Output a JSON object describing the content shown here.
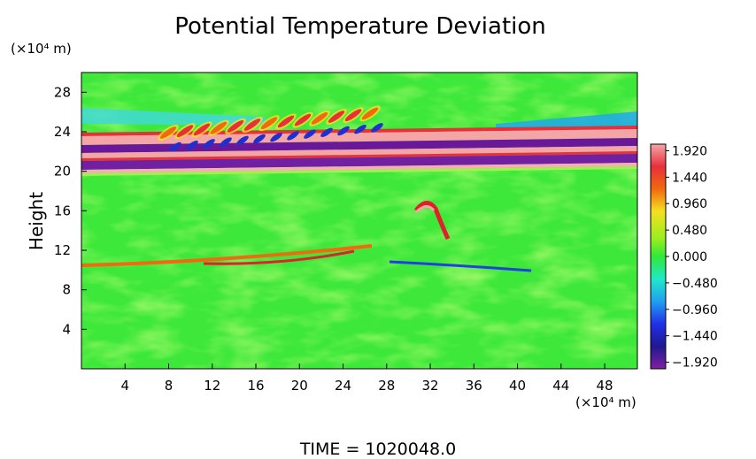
{
  "chart_data": {
    "type": "heatmap",
    "title": "Potential Temperature Deviation",
    "ylabel": "Height",
    "y_unit": "(×10⁴ m)",
    "x_unit": "(×10⁴ m)",
    "footer": "TIME = 1020048.0",
    "xlim": [
      0,
      51
    ],
    "ylim": [
      0,
      30
    ],
    "xticks": [
      4,
      8,
      12,
      16,
      20,
      24,
      28,
      32,
      36,
      40,
      44,
      48
    ],
    "yticks": [
      4,
      8,
      12,
      16,
      20,
      24,
      28
    ],
    "clim": [
      -2.04,
      2.04
    ],
    "colorbar_ticks": [
      {
        "value": 1.92,
        "label": "1.920"
      },
      {
        "value": 1.44,
        "label": "1.440"
      },
      {
        "value": 0.96,
        "label": "0.960"
      },
      {
        "value": 0.48,
        "label": "0.480"
      },
      {
        "value": 0,
        "label": "0.000"
      },
      {
        "value": -0.48,
        "label": "−0.480"
      },
      {
        "value": -0.96,
        "label": "−0.960"
      },
      {
        "value": -1.44,
        "label": "−1.440"
      },
      {
        "value": -1.92,
        "label": "−1.920"
      }
    ]
  }
}
